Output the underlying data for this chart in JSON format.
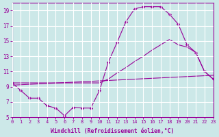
{
  "xlabel": "Windchill (Refroidissement éolien,°C)",
  "background_color": "#cce8e8",
  "line_color": "#990099",
  "grid_color": "#ffffff",
  "xmin": 0,
  "xmax": 23,
  "ymin": 5,
  "ymax": 20,
  "yticks": [
    5,
    7,
    9,
    11,
    13,
    15,
    17,
    19
  ],
  "xticks": [
    0,
    1,
    2,
    3,
    4,
    5,
    6,
    7,
    8,
    9,
    10,
    11,
    12,
    13,
    14,
    15,
    16,
    17,
    18,
    19,
    20,
    21,
    22,
    23
  ],
  "curve1_x": [
    0,
    1,
    2,
    3,
    4,
    5,
    6,
    7,
    8,
    9,
    10,
    11,
    12,
    13,
    14,
    15,
    16,
    17,
    18,
    19,
    20,
    21,
    22,
    23
  ],
  "curve1_y": [
    9.5,
    8.5,
    7.5,
    7.5,
    6.5,
    6.2,
    5.2,
    6.3,
    6.2,
    6.2,
    8.5,
    12.2,
    14.8,
    17.5,
    19.2,
    19.5,
    19.5,
    19.5,
    18.5,
    17.2,
    14.5,
    13.5,
    11.0,
    10.0
  ],
  "curve2_x": [
    0,
    10,
    11,
    12,
    13,
    14,
    15,
    16,
    17,
    18,
    19,
    20,
    21,
    22,
    23
  ],
  "curve2_y": [
    9.5,
    9.5,
    10.0,
    10.8,
    11.5,
    12.3,
    13.0,
    13.8,
    14.5,
    15.2,
    14.5,
    14.2,
    13.5,
    11.0,
    10.0
  ],
  "curve3_x": [
    0,
    23
  ],
  "curve3_y": [
    9.2,
    10.5
  ]
}
